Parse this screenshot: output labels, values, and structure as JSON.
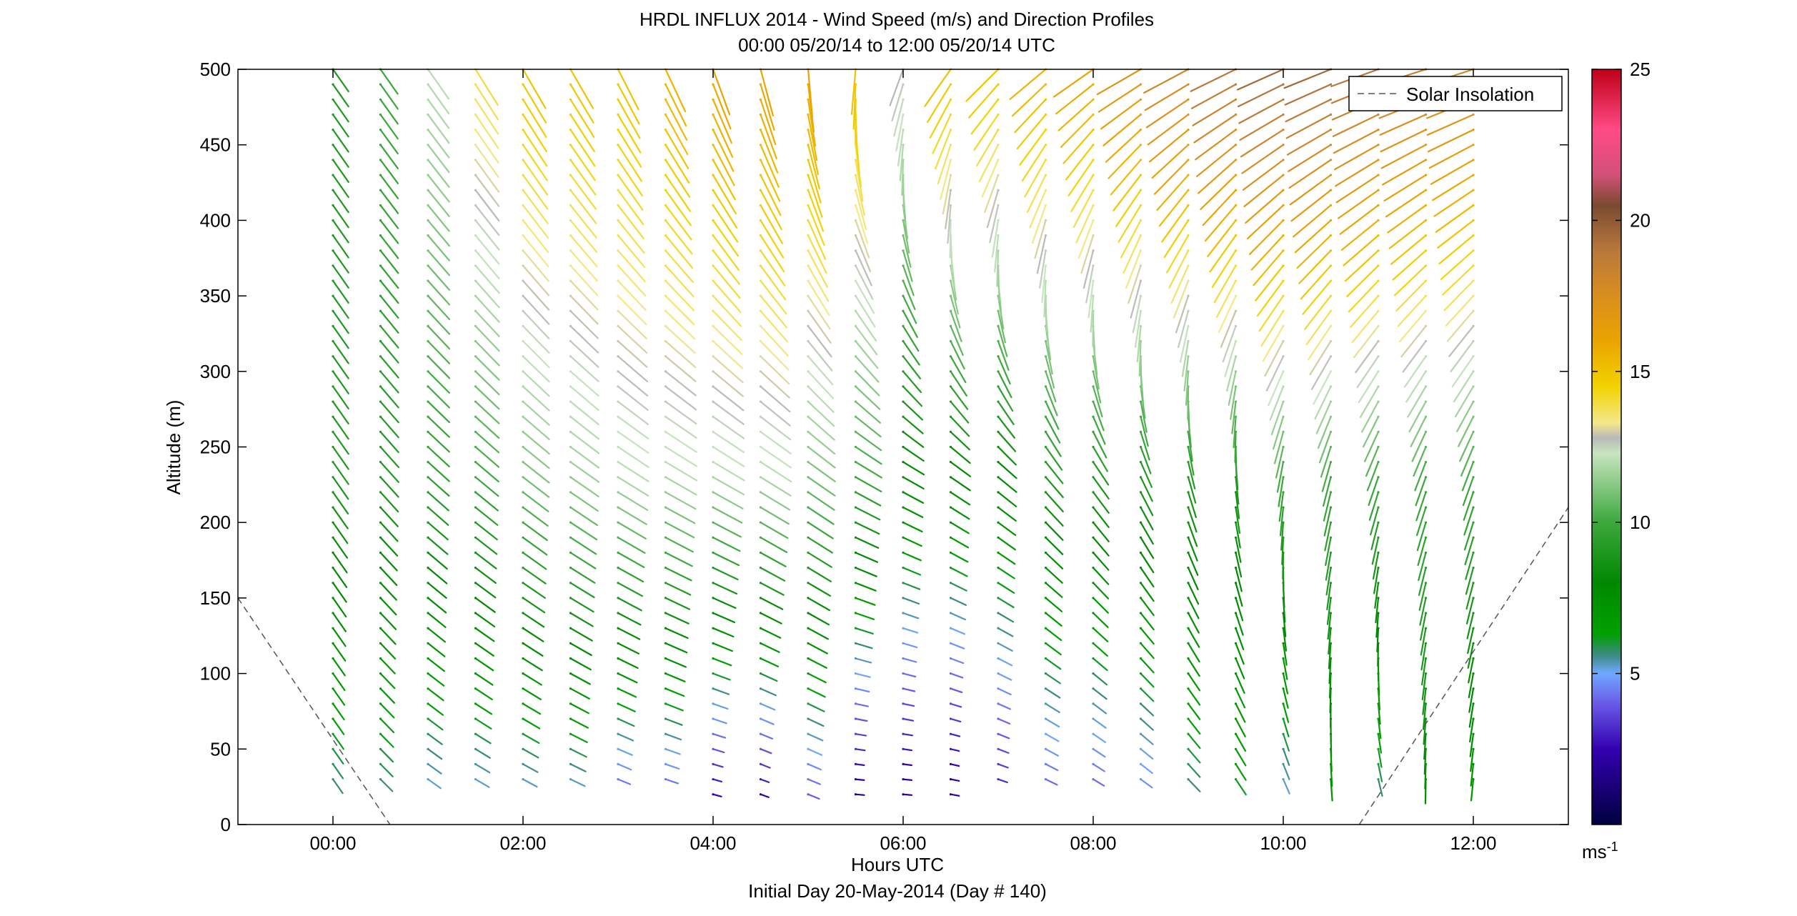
{
  "chart_data": {
    "type": "wind_barb_profile",
    "title": "HRDL INFLUX 2014 - Wind Speed (m/s) and Direction Profiles",
    "subtitle": "00:00 05/20/14 to 12:00 05/20/14  UTC",
    "xlabel": "Hours UTC",
    "xlabel2": "Initial Day 20-May-2014 (Day # 140)",
    "ylabel": "Altitude (m)",
    "xlim_hours": [
      -1,
      13
    ],
    "ylim": [
      0,
      500
    ],
    "x_ticks": [
      0,
      2,
      4,
      6,
      8,
      10,
      12
    ],
    "x_tick_labels": [
      "00:00",
      "02:00",
      "04:00",
      "06:00",
      "08:00",
      "10:00",
      "12:00"
    ],
    "y_ticks": [
      0,
      50,
      100,
      150,
      200,
      250,
      300,
      350,
      400,
      450,
      500
    ],
    "y_tick_labels": [
      "0",
      "50",
      "100",
      "150",
      "200",
      "250",
      "300",
      "350",
      "400",
      "450",
      "500"
    ],
    "colorbar": {
      "range": [
        0,
        25
      ],
      "ticks": [
        5,
        10,
        15,
        20,
        25
      ],
      "tick_labels": [
        "5",
        "10",
        "15",
        "20",
        "25"
      ],
      "unit_label": "ms",
      "unit_exponent": "-1",
      "stops": [
        {
          "v": 0,
          "c": "#000040"
        },
        {
          "v": 2.5,
          "c": "#3300b0"
        },
        {
          "v": 4,
          "c": "#6a5ae8"
        },
        {
          "v": 5,
          "c": "#6fa8ff"
        },
        {
          "v": 5.6,
          "c": "#3d8a84"
        },
        {
          "v": 6.3,
          "c": "#00a000"
        },
        {
          "v": 8,
          "c": "#008800"
        },
        {
          "v": 10,
          "c": "#3ca83c"
        },
        {
          "v": 12.3,
          "c": "#c8e4c0"
        },
        {
          "v": 12.8,
          "c": "#b8b8b8"
        },
        {
          "v": 13.3,
          "c": "#f5e88a"
        },
        {
          "v": 14.5,
          "c": "#f2d200"
        },
        {
          "v": 16,
          "c": "#eaa400"
        },
        {
          "v": 17.5,
          "c": "#d98e1e"
        },
        {
          "v": 19,
          "c": "#b8783c"
        },
        {
          "v": 20.5,
          "c": "#7a4a30"
        },
        {
          "v": 21.5,
          "c": "#d25078"
        },
        {
          "v": 23,
          "c": "#ff4a86"
        },
        {
          "v": 25,
          "c": "#c00018"
        }
      ]
    },
    "legend": {
      "label": "Solar Insolation",
      "position": "top-right"
    },
    "solar_insolation": {
      "segments": [
        [
          [
            -1,
            150
          ],
          [
            0.6,
            0
          ]
        ],
        [
          [
            10.8,
            0
          ],
          [
            13.0,
            210
          ]
        ]
      ]
    },
    "profile_times_hours": [
      0.0,
      0.5,
      1.0,
      1.5,
      2.0,
      2.5,
      3.0,
      3.5,
      4.0,
      4.5,
      5.0,
      5.5,
      6.0,
      6.5,
      7.0,
      7.5,
      8.0,
      8.5,
      9.0,
      9.5,
      10.0,
      10.5,
      11.0,
      11.5,
      12.0
    ],
    "altitude_levels_m": [
      20,
      30,
      40,
      50,
      60,
      70,
      80,
      90,
      100,
      110,
      120,
      130,
      140,
      150,
      160,
      170,
      180,
      190,
      200,
      210,
      220,
      230,
      240,
      250,
      260,
      270,
      280,
      290,
      300,
      310,
      320,
      330,
      340,
      350,
      360,
      370,
      380,
      390,
      400,
      410,
      420,
      430,
      440,
      450,
      460,
      470,
      480,
      490,
      500
    ],
    "profiles": [
      {
        "t": 0.0,
        "speed": {
          "low": 5.5,
          "mid": 9.0,
          "top": 9.0
        },
        "direction": {
          "low": 325,
          "mid": 325,
          "top": 325
        }
      },
      {
        "t": 0.5,
        "speed": {
          "low": 5.5,
          "mid": 9.0,
          "top": 10.0
        },
        "direction": {
          "low": 315,
          "mid": 318,
          "top": 325
        }
      },
      {
        "t": 1.0,
        "speed": {
          "low": 5.0,
          "mid": 9.5,
          "top": 12.0
        },
        "direction": {
          "low": 305,
          "mid": 312,
          "top": 325
        }
      },
      {
        "t": 1.5,
        "speed": {
          "low": 5.0,
          "mid": 10.0,
          "top": 14.0
        },
        "direction": {
          "low": 300,
          "mid": 310,
          "top": 328
        }
      },
      {
        "t": 2.0,
        "speed": {
          "low": 5.0,
          "mid": 11.0,
          "top": 15.0
        },
        "direction": {
          "low": 298,
          "mid": 308,
          "top": 330
        }
      },
      {
        "t": 2.5,
        "speed": {
          "low": 5.0,
          "mid": 11.5,
          "top": 15.0
        },
        "direction": {
          "low": 295,
          "mid": 305,
          "top": 330
        }
      },
      {
        "t": 3.0,
        "speed": {
          "low": 4.0,
          "mid": 12.0,
          "top": 15.0
        },
        "direction": {
          "low": 292,
          "mid": 302,
          "top": 333
        }
      },
      {
        "t": 3.5,
        "speed": {
          "low": 4.0,
          "mid": 12.0,
          "top": 15.5
        },
        "direction": {
          "low": 288,
          "mid": 300,
          "top": 335
        }
      },
      {
        "t": 4.0,
        "speed": {
          "low": 2.5,
          "mid": 12.0,
          "top": 16.0
        },
        "direction": {
          "low": 285,
          "mid": 300,
          "top": 340
        }
      },
      {
        "t": 4.5,
        "speed": {
          "low": 2.5,
          "mid": 12.0,
          "top": 16.0
        },
        "direction": {
          "low": 290,
          "mid": 302,
          "top": 345
        }
      },
      {
        "t": 5.0,
        "speed": {
          "low": 4.0,
          "mid": 11.0,
          "top": 16.0
        },
        "direction": {
          "low": 292,
          "mid": 305,
          "top": 355
        }
      },
      {
        "t": 5.5,
        "speed": {
          "low": 2.0,
          "mid": 10.0,
          "top": 15.0
        },
        "direction": {
          "low": 275,
          "mid": 300,
          "top": 5
        }
      },
      {
        "t": 6.0,
        "speed": {
          "low": 2.0,
          "mid": 8.0,
          "top": 12.8
        },
        "direction": {
          "low": 275,
          "mid": 300,
          "top": 20
        }
      },
      {
        "t": 6.5,
        "speed": {
          "low": 2.0,
          "mid": 8.0,
          "top": 15.0
        },
        "direction": {
          "low": 280,
          "mid": 305,
          "top": 35
        }
      },
      {
        "t": 7.0,
        "speed": {
          "low": 3.0,
          "mid": 8.0,
          "top": 15.0
        },
        "direction": {
          "low": 288,
          "mid": 310,
          "top": 45
        }
      },
      {
        "t": 7.5,
        "speed": {
          "low": 4.0,
          "mid": 9.0,
          "top": 15.5
        },
        "direction": {
          "low": 295,
          "mid": 320,
          "top": 50
        }
      },
      {
        "t": 8.0,
        "speed": {
          "low": 4.0,
          "mid": 9.0,
          "top": 16.0
        },
        "direction": {
          "low": 300,
          "mid": 325,
          "top": 55
        }
      },
      {
        "t": 8.5,
        "speed": {
          "low": 4.5,
          "mid": 9.0,
          "top": 17.0
        },
        "direction": {
          "low": 305,
          "mid": 335,
          "top": 60
        }
      },
      {
        "t": 9.0,
        "speed": {
          "low": 5.5,
          "mid": 9.0,
          "top": 18.0
        },
        "direction": {
          "low": 315,
          "mid": 345,
          "top": 62
        }
      },
      {
        "t": 9.5,
        "speed": {
          "low": 6.0,
          "mid": 9.0,
          "top": 19.0
        },
        "direction": {
          "low": 325,
          "mid": 355,
          "top": 64
        }
      },
      {
        "t": 10.0,
        "speed": {
          "low": 5.0,
          "mid": 10.0,
          "top": 19.5
        },
        "direction": {
          "low": 335,
          "mid": 10,
          "top": 66
        }
      },
      {
        "t": 10.5,
        "speed": {
          "low": 7.0,
          "mid": 10.0,
          "top": 19.5
        },
        "direction": {
          "low": 355,
          "mid": 15,
          "top": 68
        }
      },
      {
        "t": 11.0,
        "speed": {
          "low": 5.5,
          "mid": 10.0,
          "top": 19.0
        },
        "direction": {
          "low": 345,
          "mid": 20,
          "top": 70
        }
      },
      {
        "t": 11.5,
        "speed": {
          "low": 8.0,
          "mid": 10.0,
          "top": 18.5
        },
        "direction": {
          "low": 0,
          "mid": 20,
          "top": 72
        }
      },
      {
        "t": 12.0,
        "speed": {
          "low": 7.0,
          "mid": 10.0,
          "top": 18.0
        },
        "direction": {
          "low": 5,
          "mid": 20,
          "top": 72
        }
      }
    ]
  }
}
